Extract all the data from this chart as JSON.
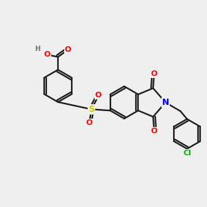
{
  "bg_color": "#efefef",
  "bond_color": "#1a1a1a",
  "bond_lw": 1.6,
  "atom_colors": {
    "O": "#ff0000",
    "S": "#cccc00",
    "N": "#0000ee",
    "Cl": "#00bb00",
    "H": "#777777",
    "C": "#1a1a1a"
  },
  "fig_w": 3.0,
  "fig_h": 3.0,
  "dpi": 100,
  "xlim": [
    0,
    10
  ],
  "ylim": [
    0,
    10
  ]
}
